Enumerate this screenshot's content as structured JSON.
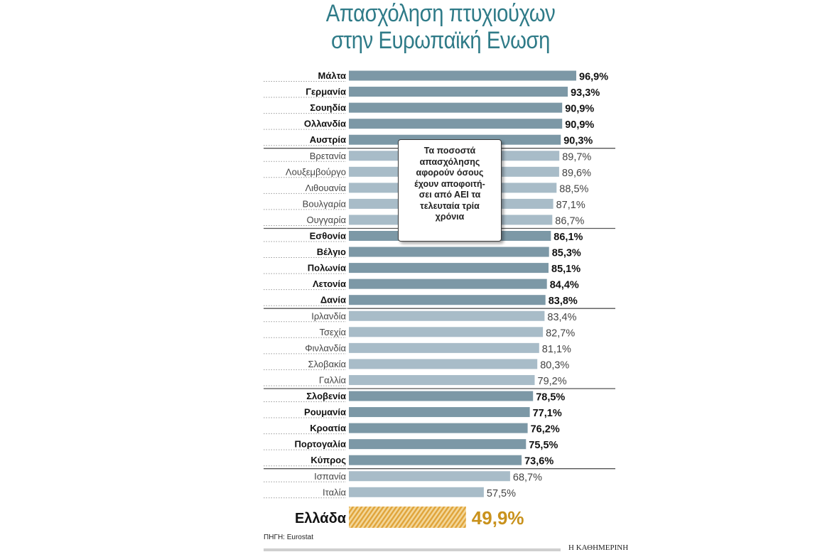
{
  "title_line1": "Απασχόληση πτυχιούχων",
  "title_line2": "στην Ευρωπαϊκή Ενωση",
  "note": "Τα ποσοστά\nαπασχόλησης\nαφορούν όσους\nέχουν αποφοιτή-\nσει από ΑΕΙ τα\nτελευταία τρία\nχρόνια",
  "source": "ΠΗΓΗ: Eurostat",
  "brand": "Η ΚΑΘΗΜΕΡΙΝΗ",
  "colors": {
    "title": "#2f7b88",
    "dark_bar": "#7c98a6",
    "light_bar": "#a8bcc8",
    "greece": "#e0a43a",
    "greece_text": "#c9921d"
  },
  "chart_data": {
    "type": "bar",
    "orientation": "horizontal",
    "categories": [
      "Μάλτα",
      "Γερμανία",
      "Σουηδία",
      "Ολλανδία",
      "Αυστρία",
      "Βρετανία",
      "Λουξεμβούργο",
      "Λιθουανία",
      "Βουλγαρία",
      "Ουγγαρία",
      "Εσθονία",
      "Βέλγιο",
      "Πολωνία",
      "Λετονία",
      "Δανία",
      "Ιρλανδία",
      "Τσεχία",
      "Φινλανδία",
      "Σλοβακία",
      "Γαλλία",
      "Σλοβενία",
      "Ρουμανία",
      "Κροατία",
      "Πορτογαλία",
      "Κύπρος",
      "Ισπανία",
      "Ιταλία",
      "Ελλάδα"
    ],
    "values": [
      96.9,
      93.3,
      90.9,
      90.9,
      90.3,
      89.7,
      89.6,
      88.5,
      87.1,
      86.7,
      86.1,
      85.3,
      85.1,
      84.4,
      83.8,
      83.4,
      82.7,
      81.1,
      80.3,
      79.2,
      78.5,
      77.1,
      76.2,
      75.5,
      73.6,
      68.7,
      57.5,
      49.9
    ],
    "labels": [
      "96,9%",
      "93,3%",
      "90,9%",
      "90,9%",
      "90,3%",
      "89,7%",
      "89,6%",
      "88,5%",
      "87,1%",
      "86,7%",
      "86,1%",
      "85,3%",
      "85,1%",
      "84,4%",
      "83,8%",
      "83,4%",
      "82,7%",
      "81,1%",
      "80,3%",
      "79,2%",
      "78,5%",
      "77,1%",
      "76,2%",
      "75,5%",
      "73,6%",
      "68,7%",
      "57,5%",
      "49,9%"
    ],
    "group_style": [
      "dark",
      "dark",
      "dark",
      "dark",
      "dark",
      "light",
      "light",
      "light",
      "light",
      "light",
      "dark",
      "dark",
      "dark",
      "dark",
      "dark",
      "light",
      "light",
      "light",
      "light",
      "light",
      "dark",
      "dark",
      "dark",
      "dark",
      "dark",
      "light",
      "light",
      "highlight"
    ],
    "unit": "%",
    "xlim": [
      0,
      100
    ],
    "grid": false
  }
}
